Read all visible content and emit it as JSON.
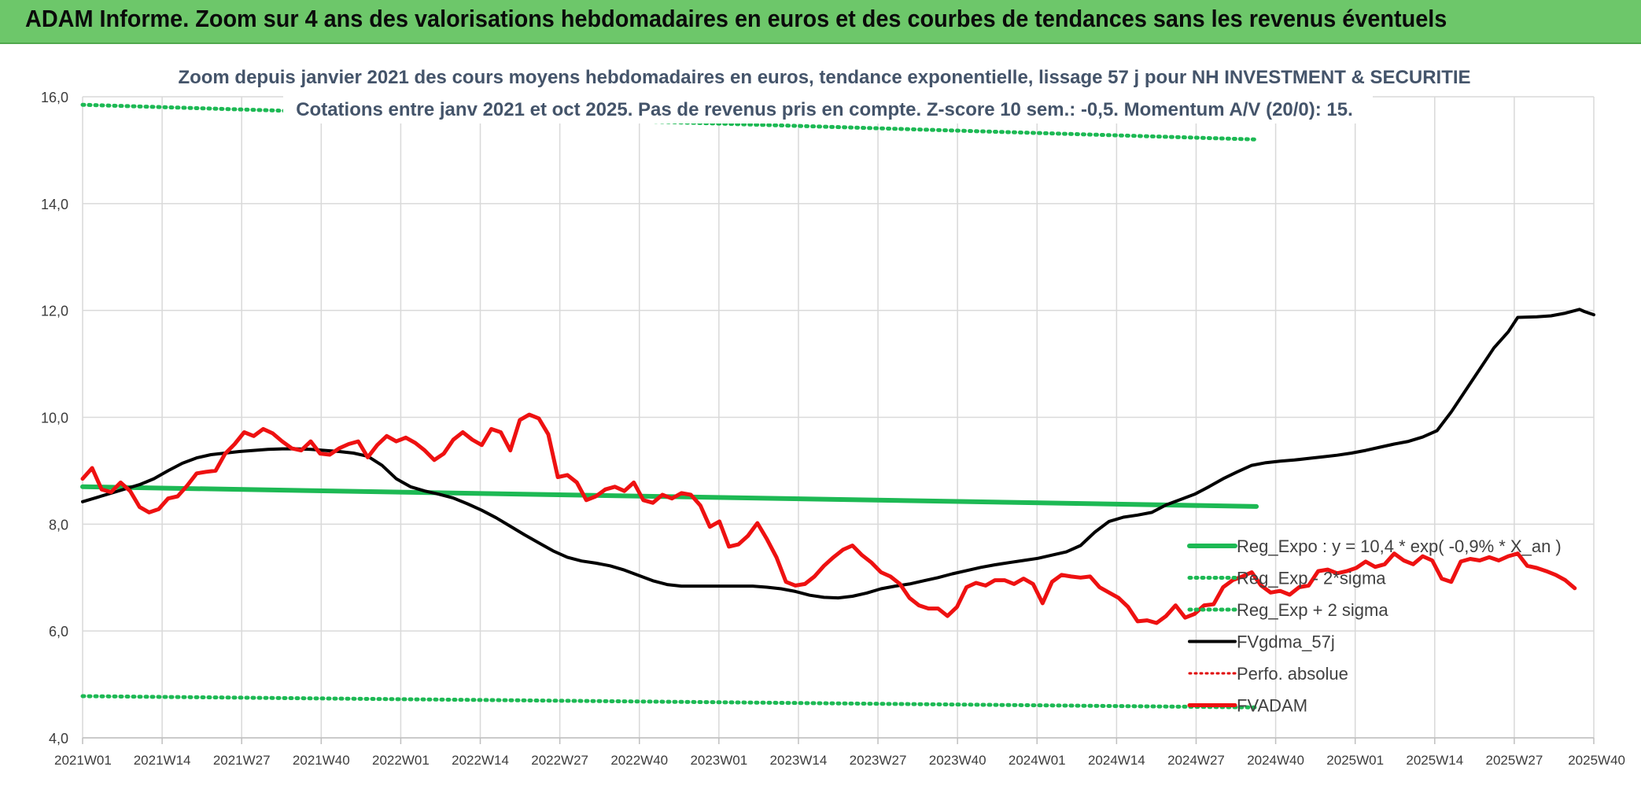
{
  "header": {
    "banner_title": "ADAM Informe. Zoom sur 4 ans des valorisations hebdomadaires en euros et des courbes de tendances sans les revenus éventuels"
  },
  "colors": {
    "banner_bg": "#6dc76a",
    "regression": "#1db954",
    "sigma": "#1db954",
    "gdma": "#000000",
    "perfo": "#e00000",
    "fvadam": "#ee1111"
  },
  "chart_data": {
    "type": "line",
    "title_line1": "Zoom depuis janvier 2021 des cours moyens hebdomadaires en euros, tendance exponentielle, lissage 57 j pour NH INVESTMENT & SECURITIE",
    "title_line2": "Cotations entre janv 2021 et oct 2025. Pas de revenus pris en compte. Z-score 10 sem.: -0,5. Momentum A/V (20/0): 15.",
    "x_tick_labels": [
      "2021W01",
      "2021W14",
      "2021W27",
      "2021W40",
      "2022W01",
      "2022W14",
      "2022W27",
      "2022W40",
      "2023W01",
      "2023W14",
      "2023W27",
      "2023W40",
      "2024W01",
      "2024W14",
      "2024W27",
      "2024W40",
      "2025W01",
      "2025W14",
      "2025W27",
      "2025W40"
    ],
    "y_tick_labels": [
      "4,0",
      "6,0",
      "8,0",
      "10,0",
      "12,0",
      "14,0",
      "16,0"
    ],
    "ylim": [
      4,
      16
    ],
    "x_range_weeks": [
      0,
      247
    ],
    "grid": true,
    "legend_position": "bottom-right",
    "series": [
      {
        "name": "Reg_Expo : y = 10,4 * exp( -0,9% *  X_an )",
        "style": "solid-green",
        "points": [
          [
            0,
            8.7
          ],
          [
            247,
            8.33
          ]
        ]
      },
      {
        "name": "Reg_Exp - 2*sigma",
        "style": "dotted-green",
        "points": [
          [
            0,
            4.78
          ],
          [
            247,
            4.57
          ]
        ]
      },
      {
        "name": "Reg_Exp + 2 sigma",
        "style": "dotted-green",
        "points": [
          [
            0,
            15.85
          ],
          [
            247,
            15.2
          ]
        ]
      },
      {
        "name": "FVgdma_57j",
        "style": "solid-black",
        "points": [
          [
            0,
            8.42
          ],
          [
            3,
            8.5
          ],
          [
            6,
            8.58
          ],
          [
            9,
            8.66
          ],
          [
            12,
            8.74
          ],
          [
            15,
            8.85
          ],
          [
            18,
            9.0
          ],
          [
            21,
            9.14
          ],
          [
            24,
            9.24
          ],
          [
            27,
            9.3
          ],
          [
            30,
            9.33
          ],
          [
            33,
            9.36
          ],
          [
            36,
            9.38
          ],
          [
            39,
            9.4
          ],
          [
            42,
            9.41
          ],
          [
            45,
            9.41
          ],
          [
            48,
            9.4
          ],
          [
            51,
            9.38
          ],
          [
            54,
            9.36
          ],
          [
            57,
            9.33
          ],
          [
            60,
            9.27
          ],
          [
            63,
            9.1
          ],
          [
            66,
            8.85
          ],
          [
            69,
            8.7
          ],
          [
            72,
            8.62
          ],
          [
            75,
            8.56
          ],
          [
            78,
            8.49
          ],
          [
            81,
            8.38
          ],
          [
            84,
            8.26
          ],
          [
            87,
            8.12
          ],
          [
            90,
            7.96
          ],
          [
            93,
            7.8
          ],
          [
            96,
            7.65
          ],
          [
            99,
            7.5
          ],
          [
            102,
            7.38
          ],
          [
            105,
            7.31
          ],
          [
            108,
            7.27
          ],
          [
            111,
            7.22
          ],
          [
            114,
            7.14
          ],
          [
            117,
            7.04
          ],
          [
            120,
            6.94
          ],
          [
            123,
            6.87
          ],
          [
            126,
            6.84
          ],
          [
            129,
            6.84
          ],
          [
            132,
            6.84
          ],
          [
            135,
            6.84
          ],
          [
            138,
            6.84
          ],
          [
            141,
            6.84
          ],
          [
            144,
            6.82
          ],
          [
            147,
            6.79
          ],
          [
            150,
            6.74
          ],
          [
            153,
            6.67
          ],
          [
            156,
            6.63
          ],
          [
            159,
            6.62
          ],
          [
            162,
            6.65
          ],
          [
            165,
            6.71
          ],
          [
            168,
            6.79
          ],
          [
            171,
            6.84
          ],
          [
            174,
            6.88
          ],
          [
            177,
            6.94
          ],
          [
            180,
            7.0
          ],
          [
            183,
            7.07
          ],
          [
            186,
            7.13
          ],
          [
            189,
            7.19
          ],
          [
            192,
            7.24
          ],
          [
            195,
            7.28
          ],
          [
            198,
            7.32
          ],
          [
            201,
            7.36
          ],
          [
            204,
            7.42
          ],
          [
            207,
            7.48
          ],
          [
            210,
            7.6
          ],
          [
            213,
            7.85
          ],
          [
            216,
            8.05
          ],
          [
            219,
            8.13
          ],
          [
            222,
            8.17
          ],
          [
            225,
            8.22
          ],
          [
            228,
            8.36
          ],
          [
            231,
            8.46
          ],
          [
            234,
            8.56
          ],
          [
            237,
            8.7
          ],
          [
            240,
            8.85
          ],
          [
            243,
            8.98
          ],
          [
            246,
            9.1
          ],
          [
            249,
            9.15
          ],
          [
            252,
            9.18
          ],
          [
            255,
            9.2
          ],
          [
            258,
            9.23
          ],
          [
            261,
            9.26
          ],
          [
            264,
            9.29
          ],
          [
            267,
            9.33
          ],
          [
            270,
            9.38
          ],
          [
            273,
            9.44
          ],
          [
            276,
            9.5
          ],
          [
            279,
            9.55
          ],
          [
            282,
            9.63
          ],
          [
            285,
            9.75
          ],
          [
            288,
            10.1
          ],
          [
            291,
            10.5
          ],
          [
            294,
            10.9
          ],
          [
            297,
            11.3
          ],
          [
            300,
            11.6
          ],
          [
            302,
            11.87
          ],
          [
            306,
            11.88
          ],
          [
            309,
            11.9
          ],
          [
            312,
            11.95
          ],
          [
            315,
            12.02
          ],
          [
            316,
            11.98
          ],
          [
            318,
            11.92
          ]
        ]
      },
      {
        "name": "Perfo. absolue",
        "style": "dotted-red",
        "points": []
      },
      {
        "name": "FVADAM",
        "style": "solid-red",
        "points": [
          [
            0,
            8.85
          ],
          [
            2,
            9.05
          ],
          [
            4,
            8.65
          ],
          [
            6,
            8.6
          ],
          [
            8,
            8.78
          ],
          [
            10,
            8.62
          ],
          [
            12,
            8.32
          ],
          [
            14,
            8.22
          ],
          [
            16,
            8.28
          ],
          [
            18,
            8.48
          ],
          [
            20,
            8.52
          ],
          [
            22,
            8.72
          ],
          [
            24,
            8.95
          ],
          [
            26,
            8.98
          ],
          [
            28,
            9.0
          ],
          [
            30,
            9.32
          ],
          [
            32,
            9.5
          ],
          [
            34,
            9.72
          ],
          [
            36,
            9.65
          ],
          [
            38,
            9.78
          ],
          [
            40,
            9.7
          ],
          [
            42,
            9.55
          ],
          [
            44,
            9.42
          ],
          [
            46,
            9.38
          ],
          [
            48,
            9.55
          ],
          [
            50,
            9.32
          ],
          [
            52,
            9.3
          ],
          [
            54,
            9.42
          ],
          [
            56,
            9.5
          ],
          [
            58,
            9.55
          ],
          [
            60,
            9.25
          ],
          [
            62,
            9.48
          ],
          [
            64,
            9.65
          ],
          [
            66,
            9.55
          ],
          [
            68,
            9.62
          ],
          [
            70,
            9.52
          ],
          [
            72,
            9.38
          ],
          [
            74,
            9.2
          ],
          [
            76,
            9.32
          ],
          [
            78,
            9.58
          ],
          [
            80,
            9.72
          ],
          [
            82,
            9.58
          ],
          [
            84,
            9.48
          ],
          [
            86,
            9.78
          ],
          [
            88,
            9.72
          ],
          [
            90,
            9.38
          ],
          [
            92,
            9.95
          ],
          [
            94,
            10.05
          ],
          [
            96,
            9.98
          ],
          [
            98,
            9.68
          ],
          [
            100,
            8.88
          ],
          [
            102,
            8.92
          ],
          [
            104,
            8.78
          ],
          [
            106,
            8.45
          ],
          [
            108,
            8.52
          ],
          [
            110,
            8.65
          ],
          [
            112,
            8.7
          ],
          [
            114,
            8.62
          ],
          [
            116,
            8.78
          ],
          [
            118,
            8.45
          ],
          [
            120,
            8.4
          ],
          [
            122,
            8.55
          ],
          [
            124,
            8.48
          ],
          [
            126,
            8.58
          ],
          [
            128,
            8.55
          ],
          [
            130,
            8.35
          ],
          [
            132,
            7.95
          ],
          [
            134,
            8.05
          ],
          [
            136,
            7.58
          ],
          [
            138,
            7.62
          ],
          [
            140,
            7.78
          ],
          [
            142,
            8.02
          ],
          [
            144,
            7.72
          ],
          [
            146,
            7.38
          ],
          [
            148,
            6.92
          ],
          [
            150,
            6.85
          ],
          [
            152,
            6.88
          ],
          [
            154,
            7.02
          ],
          [
            156,
            7.22
          ],
          [
            158,
            7.38
          ],
          [
            160,
            7.52
          ],
          [
            162,
            7.6
          ],
          [
            164,
            7.42
          ],
          [
            166,
            7.28
          ],
          [
            168,
            7.1
          ],
          [
            170,
            7.02
          ],
          [
            172,
            6.88
          ],
          [
            174,
            6.62
          ],
          [
            176,
            6.48
          ],
          [
            178,
            6.42
          ],
          [
            180,
            6.42
          ],
          [
            182,
            6.28
          ],
          [
            184,
            6.45
          ],
          [
            186,
            6.82
          ],
          [
            188,
            6.9
          ],
          [
            190,
            6.85
          ],
          [
            192,
            6.95
          ],
          [
            194,
            6.95
          ],
          [
            196,
            6.88
          ],
          [
            198,
            6.98
          ],
          [
            200,
            6.88
          ],
          [
            202,
            6.52
          ],
          [
            204,
            6.92
          ],
          [
            206,
            7.05
          ],
          [
            208,
            7.02
          ],
          [
            210,
            7.0
          ],
          [
            212,
            7.02
          ],
          [
            214,
            6.82
          ],
          [
            216,
            6.72
          ],
          [
            218,
            6.62
          ],
          [
            220,
            6.45
          ],
          [
            222,
            6.18
          ],
          [
            224,
            6.2
          ],
          [
            226,
            6.15
          ],
          [
            228,
            6.28
          ],
          [
            230,
            6.48
          ],
          [
            232,
            6.25
          ],
          [
            234,
            6.32
          ],
          [
            236,
            6.48
          ],
          [
            238,
            6.5
          ],
          [
            240,
            6.82
          ],
          [
            242,
            6.95
          ],
          [
            244,
            7.02
          ],
          [
            246,
            7.1
          ],
          [
            248,
            6.85
          ],
          [
            250,
            6.72
          ],
          [
            252,
            6.75
          ],
          [
            254,
            6.68
          ],
          [
            256,
            6.82
          ],
          [
            258,
            6.85
          ],
          [
            260,
            7.12
          ],
          [
            262,
            7.15
          ],
          [
            264,
            7.08
          ],
          [
            266,
            7.12
          ],
          [
            268,
            7.18
          ],
          [
            270,
            7.3
          ],
          [
            272,
            7.2
          ],
          [
            274,
            7.25
          ],
          [
            276,
            7.45
          ],
          [
            278,
            7.32
          ],
          [
            280,
            7.25
          ],
          [
            282,
            7.4
          ],
          [
            284,
            7.32
          ],
          [
            286,
            6.98
          ],
          [
            288,
            6.92
          ],
          [
            290,
            7.3
          ],
          [
            292,
            7.35
          ],
          [
            294,
            7.32
          ],
          [
            296,
            7.38
          ],
          [
            298,
            7.32
          ],
          [
            300,
            7.4
          ],
          [
            302,
            7.45
          ],
          [
            304,
            7.22
          ],
          [
            306,
            7.18
          ],
          [
            308,
            7.12
          ],
          [
            310,
            7.05
          ],
          [
            312,
            6.95
          ],
          [
            314,
            6.8
          ]
        ]
      }
    ]
  }
}
